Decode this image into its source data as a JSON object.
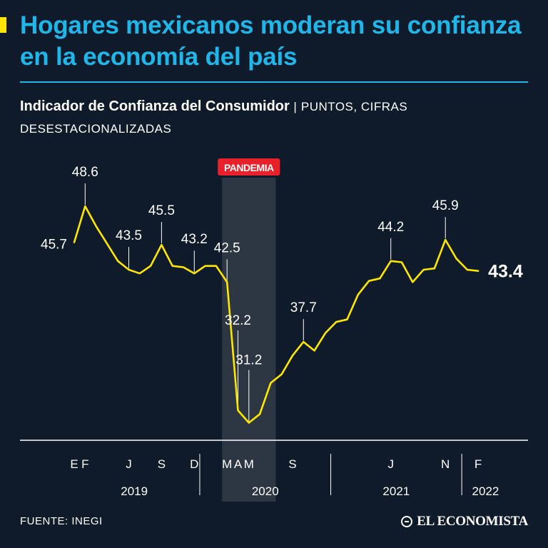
{
  "title": "Hogares mexicanos moderan su confianza en la economía del país",
  "subtitle": {
    "indicator": "Indicador de Confianza del Consumidor",
    "separator": "|",
    "units": "PUNTOS, CIFRAS DESESTACIONALIZADAS"
  },
  "source": "FUENTE: INEGI",
  "brand": "EL ECONOMISTA",
  "colors": {
    "background": "#0f1b2a",
    "title": "#1fb7ea",
    "line": "#ffe600",
    "highlight_band": "#2c3743",
    "pandemic_badge": "#e8202a",
    "text": "#ffffff"
  },
  "chart_data": {
    "type": "line",
    "title": "Indicador de Confianza del Consumidor",
    "ylabel": "Puntos",
    "ylim": [
      30.6,
      48.6
    ],
    "last_label": "43.4",
    "highlight": {
      "label": "PANDEMIA",
      "from_index": 14,
      "to_index": 18
    },
    "values": [
      45.7,
      48.6,
      47.0,
      45.6,
      44.2,
      43.5,
      43.2,
      43.8,
      45.5,
      43.8,
      43.7,
      43.2,
      43.8,
      43.8,
      42.5,
      32.2,
      31.2,
      31.9,
      34.4,
      35.1,
      36.6,
      37.7,
      37.0,
      38.4,
      39.3,
      39.5,
      41.5,
      42.6,
      42.8,
      44.2,
      44.1,
      42.5,
      43.5,
      43.6,
      45.9,
      44.4,
      43.5,
      43.4
    ],
    "point_labels": [
      {
        "index": 0,
        "text": "45.7",
        "style": "left"
      },
      {
        "index": 1,
        "text": "48.6",
        "style": "stem"
      },
      {
        "index": 5,
        "text": "43.5",
        "style": "stem"
      },
      {
        "index": 8,
        "text": "45.5",
        "style": "stem"
      },
      {
        "index": 11,
        "text": "43.2",
        "style": "stem"
      },
      {
        "index": 14,
        "text": "42.5",
        "style": "stem"
      },
      {
        "index": 15,
        "text": "32.2",
        "style": "stem"
      },
      {
        "index": 16,
        "text": "31.2",
        "style": "stem"
      },
      {
        "index": 21,
        "text": "37.7",
        "style": "stem"
      },
      {
        "index": 29,
        "text": "44.2",
        "style": "stem"
      },
      {
        "index": 34,
        "text": "45.9",
        "style": "stem"
      }
    ],
    "month_ticks": [
      {
        "index": 0,
        "label": "E"
      },
      {
        "index": 1,
        "label": "F"
      },
      {
        "index": 5,
        "label": "J"
      },
      {
        "index": 8,
        "label": "S"
      },
      {
        "index": 11,
        "label": "D"
      },
      {
        "index": 14,
        "label": "M"
      },
      {
        "index": 15,
        "label": "A"
      },
      {
        "index": 16,
        "label": "M"
      },
      {
        "index": 20,
        "label": "S"
      },
      {
        "index": 29,
        "label": "J"
      },
      {
        "index": 34,
        "label": "N"
      },
      {
        "index": 37,
        "label": "F"
      }
    ],
    "years": [
      {
        "label": "2019",
        "from_index": 0,
        "to_index": 11
      },
      {
        "label": "2020",
        "from_index": 12,
        "to_index": 23
      },
      {
        "label": "2021",
        "from_index": 24,
        "to_index": 35
      },
      {
        "label": "2022",
        "from_index": 36,
        "to_index": 37
      }
    ]
  }
}
